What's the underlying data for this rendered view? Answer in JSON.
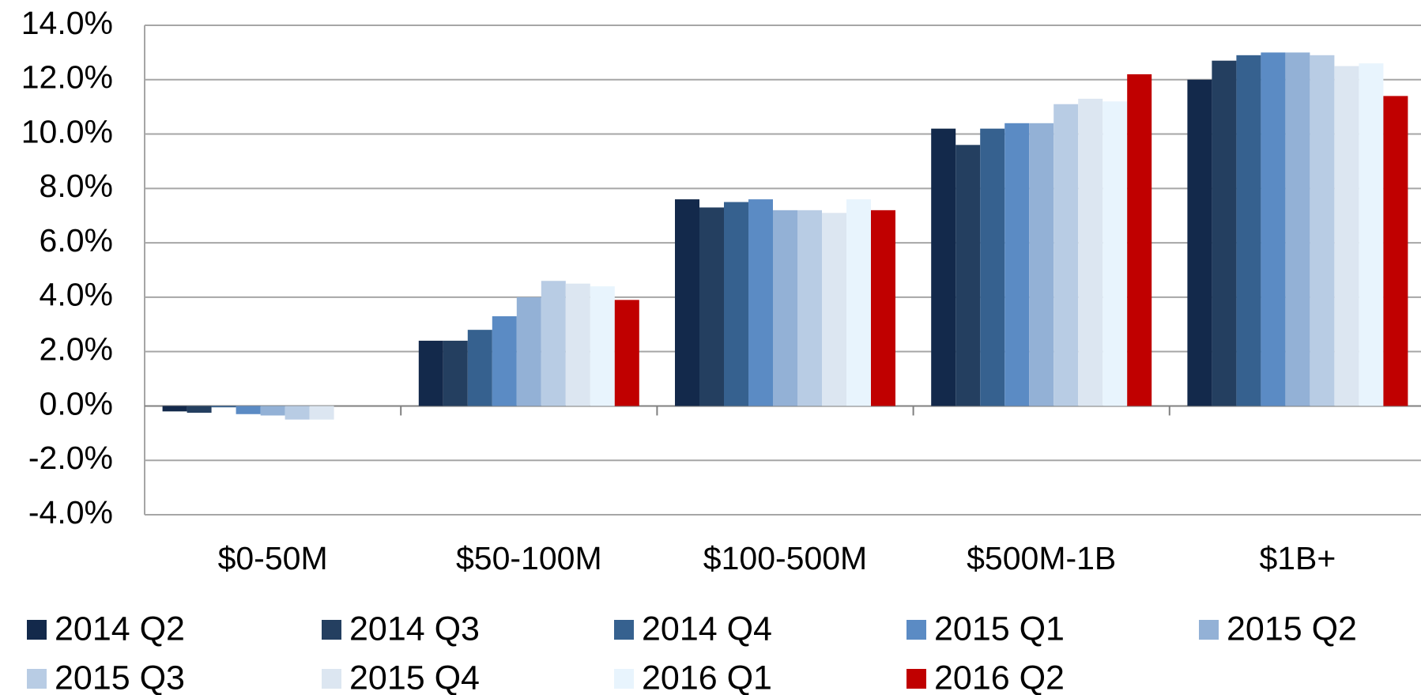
{
  "chart_data": {
    "type": "bar",
    "categories": [
      "$0-50M",
      "$50-100M",
      "$100-500M",
      "$500M-1B",
      "$1B+"
    ],
    "series": [
      {
        "name": "2014 Q2",
        "color": "#13294b",
        "values": [
          -0.2,
          2.4,
          7.6,
          10.2,
          12.0
        ]
      },
      {
        "name": "2014 Q3",
        "color": "#243f60",
        "values": [
          -0.25,
          2.4,
          7.3,
          9.6,
          12.7
        ]
      },
      {
        "name": "2014 Q4",
        "color": "#36618f",
        "values": [
          -0.05,
          2.8,
          7.5,
          10.2,
          12.9
        ]
      },
      {
        "name": "2015 Q1",
        "color": "#5b8bc4",
        "values": [
          -0.3,
          3.3,
          7.6,
          10.4,
          13.0
        ]
      },
      {
        "name": "2015 Q2",
        "color": "#93b1d6",
        "values": [
          -0.35,
          4.0,
          7.2,
          10.4,
          13.0
        ]
      },
      {
        "name": "2015 Q3",
        "color": "#b8cce4",
        "values": [
          -0.5,
          4.6,
          7.2,
          11.1,
          12.9
        ]
      },
      {
        "name": "2015 Q4",
        "color": "#dce6f1",
        "values": [
          -0.5,
          4.5,
          7.1,
          11.3,
          12.5
        ]
      },
      {
        "name": "2016 Q1",
        "color": "#e8f4fd",
        "values": [
          0,
          4.4,
          7.6,
          11.2,
          12.6
        ]
      },
      {
        "name": "2016 Q2",
        "color": "#c00000",
        "values": [
          0,
          3.9,
          7.2,
          12.2,
          11.4
        ]
      }
    ],
    "ylim": [
      -4,
      14
    ],
    "yticks": [
      {
        "value": -4,
        "label": "-4.0%"
      },
      {
        "value": -2,
        "label": "-2.0%"
      },
      {
        "value": 0,
        "label": "0.0%"
      },
      {
        "value": 2,
        "label": "2.0%"
      },
      {
        "value": 4,
        "label": "4.0%"
      },
      {
        "value": 6,
        "label": "6.0%"
      },
      {
        "value": 8,
        "label": "8.0%"
      },
      {
        "value": 10,
        "label": "10.0%"
      },
      {
        "value": 12,
        "label": "12.0%"
      },
      {
        "value": 14,
        "label": "14.0%"
      }
    ],
    "grid": true,
    "legend": "bottom"
  }
}
